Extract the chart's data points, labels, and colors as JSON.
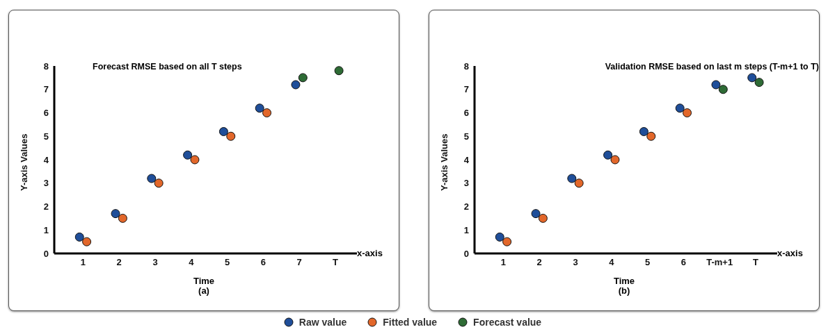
{
  "chart_data": [
    {
      "type": "scatter",
      "title": "Forecast RMSE based on all T steps",
      "xlabel": "Time",
      "ylabel": "Y-axis Values",
      "annotations": [
        "x-axis",
        "(a)"
      ],
      "categories": [
        "1",
        "2",
        "3",
        "4",
        "5",
        "6",
        "7",
        "T"
      ],
      "ylim": [
        0,
        8
      ],
      "yticks": [
        0,
        1,
        2,
        3,
        4,
        5,
        6,
        7,
        8
      ],
      "grid": false,
      "marker": "circle",
      "legend": "bottom",
      "series": [
        {
          "name": "Raw value",
          "color": "#1f4e99",
          "x": [
            "1",
            "2",
            "3",
            "4",
            "5",
            "6",
            "7"
          ],
          "values": [
            0.7,
            1.7,
            3.2,
            4.2,
            5.2,
            6.2,
            7.2
          ]
        },
        {
          "name": "Fitted value",
          "color": "#e2672a",
          "x": [
            "1",
            "2",
            "3",
            "4",
            "5",
            "6"
          ],
          "values": [
            0.5,
            1.5,
            3.0,
            4.0,
            5.0,
            6.0
          ]
        },
        {
          "name": "Forecast value",
          "color": "#2e6b35",
          "x": [
            "7",
            "T"
          ],
          "values": [
            7.5,
            7.8
          ]
        }
      ]
    },
    {
      "type": "scatter",
      "title": "Validation RMSE based on last m steps (T-m+1 to T)",
      "xlabel": "Time",
      "ylabel": "Y-axis Values",
      "annotations": [
        "x-axis",
        "(b)"
      ],
      "categories": [
        "1",
        "2",
        "3",
        "4",
        "5",
        "6",
        "T-m+1",
        "T"
      ],
      "ylim": [
        0,
        8
      ],
      "yticks": [
        0,
        1,
        2,
        3,
        4,
        5,
        6,
        7,
        8
      ],
      "grid": false,
      "marker": "circle",
      "series": [
        {
          "color": "#1f4e99",
          "x": [
            "1",
            "2",
            "3",
            "4",
            "5",
            "6",
            "T-m+1",
            "T"
          ],
          "values": [
            0.7,
            1.7,
            3.2,
            4.2,
            5.2,
            6.2,
            7.2,
            7.5
          ]
        },
        {
          "color": "#e2672a",
          "x": [
            "1",
            "2",
            "3",
            "4",
            "5",
            "6"
          ],
          "values": [
            0.5,
            1.5,
            3.0,
            4.0,
            5.0,
            6.0
          ]
        },
        {
          "color": "#2e6b35",
          "x": [
            "T-m+1",
            "T"
          ],
          "values": [
            7.0,
            7.3
          ]
        }
      ]
    }
  ]
}
